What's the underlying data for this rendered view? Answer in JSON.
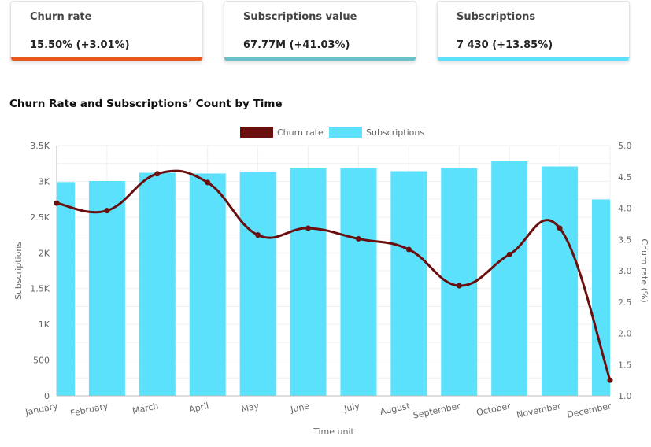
{
  "kpis": [
    {
      "label": "Churn rate",
      "value": "15.50% (+3.01%)",
      "color": "#e8581c"
    },
    {
      "label": "Subscriptions value",
      "value": "67.77M (+41.03%)",
      "color": "#6bbfc8"
    },
    {
      "label": "Subscriptions",
      "value": "7 430 (+13.85%)",
      "color": "#5ce1fd"
    }
  ],
  "chart_data": {
    "type": "bar+line",
    "title": "Churn Rate and Subscriptions’ Count by Time",
    "xlabel": "Time unit",
    "ylabel_left": "Subscriptions",
    "ylabel_right": "Churn rate (%)",
    "categories": [
      "January",
      "February",
      "March",
      "April",
      "May",
      "June",
      "July",
      "August",
      "September",
      "October",
      "November",
      "December"
    ],
    "ylim_left": [
      0,
      3500
    ],
    "yticks_left": [
      "0",
      "500",
      "1K",
      "1.5K",
      "2K",
      "2.5K",
      "3K",
      "3.5K"
    ],
    "ylim_right": [
      1.0,
      5.0
    ],
    "yticks_right": [
      "1.0",
      "1.5",
      "2.0",
      "2.5",
      "3.0",
      "3.5",
      "4.0",
      "4.5",
      "5.0"
    ],
    "legend_position": "top",
    "grid": true,
    "series": [
      {
        "name": "Churn rate",
        "type": "line",
        "axis": "right",
        "color": "#6b0e0e",
        "values": [
          4.08,
          3.96,
          4.55,
          4.41,
          3.57,
          3.68,
          3.51,
          3.34,
          2.76,
          3.26,
          3.68,
          1.25
        ]
      },
      {
        "name": "Subscriptions",
        "type": "bar",
        "axis": "left",
        "color": "#5ce1fd",
        "values": [
          2990,
          3005,
          3120,
          3110,
          3137,
          3181,
          3186,
          3142,
          3186,
          3280,
          3208,
          2746
        ]
      }
    ]
  }
}
